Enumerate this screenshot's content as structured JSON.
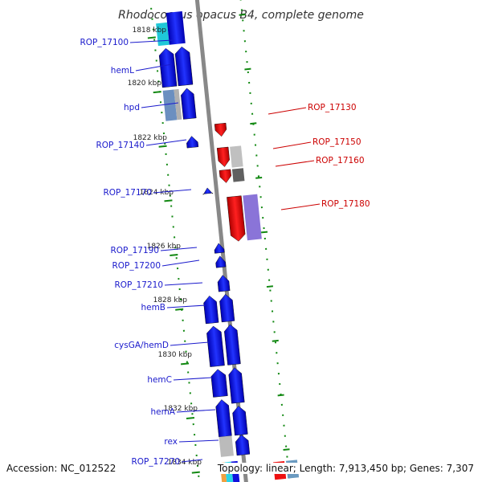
{
  "title": "Rhodococcus opacus B4, complete genome",
  "accession": "Accession: NC_012522",
  "topology": "Topology: linear; Length: 7,913,450 bp; Genes: 7,307",
  "kbp_labels": [
    "1818 kbp",
    "1820 kbp",
    "1822 kbp",
    "1824 kbp",
    "1826 kbp",
    "1828 kbp",
    "1830 kbp",
    "1832 kbp",
    "1834 kbp"
  ],
  "left_genes": [
    "ROP_17100",
    "hemL",
    "hpd",
    "ROP_17140",
    "ROP_17170",
    "ROP_17190",
    "ROP_17200",
    "ROP_17210",
    "hemB",
    "cysGA/hemD",
    "hemC",
    "hemA",
    "rex",
    "ROP_17270"
  ],
  "right_genes": [
    "ROP_17130",
    "ROP_17150",
    "ROP_17160",
    "ROP_17180"
  ],
  "colors": {
    "forward": "#1111dd",
    "reverse": "#ee1111",
    "backbone": "#888888",
    "tick": "#118811",
    "label_blue": "#1a1acc",
    "label_red": "#cc0000"
  }
}
